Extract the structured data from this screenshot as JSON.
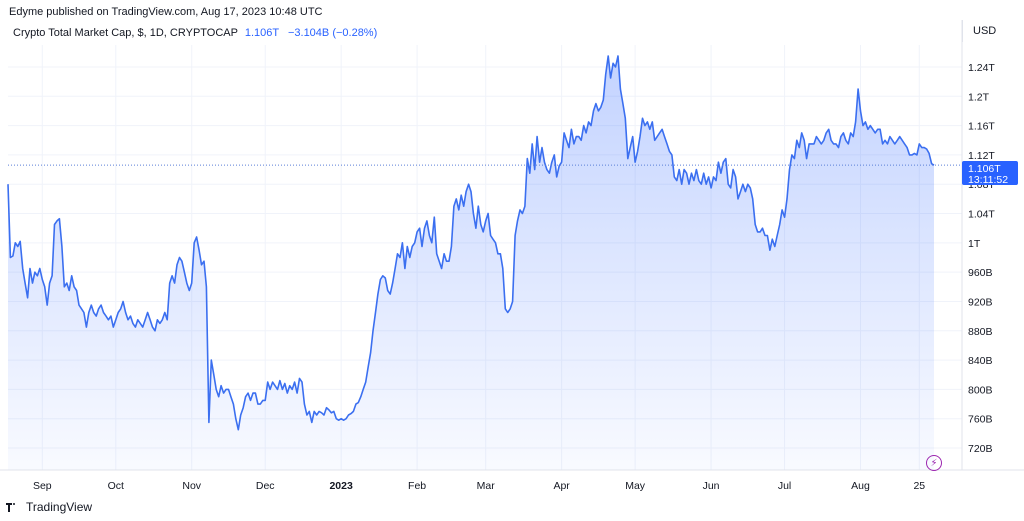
{
  "header": {
    "published": "Edyme published on TradingView.com, Aug 17, 2023 10:48 UTC",
    "symbol_label": "Crypto Total Market Cap, $, 1D, CRYPTOCAP",
    "last_value": "1.106T",
    "change": "−3.104B (−0.28%)",
    "currency": "USD"
  },
  "price_tag": {
    "value": "1.106T",
    "countdown": "13:11:52"
  },
  "brand": {
    "name": "TradingView",
    "icon": "tradingview-logo"
  },
  "colors": {
    "line": "#3b6ff0",
    "fill": "#2962ff",
    "tag": "#2962ff",
    "grid": "#f0f3fa"
  },
  "chart_data": {
    "type": "area",
    "y_unit": "USD",
    "ylim": [
      690,
      1270
    ],
    "y_ticks": [
      720,
      760,
      800,
      840,
      880,
      920,
      960,
      1000,
      1040,
      1080,
      1120,
      1160,
      1200,
      1240
    ],
    "y_tick_labels": [
      "720B",
      "760B",
      "800B",
      "840B",
      "880B",
      "920B",
      "960B",
      "1T",
      "1.04T",
      "1.08T",
      "1.12T",
      "1.16T",
      "1.2T",
      "1.24T"
    ],
    "x_labels": [
      {
        "label": "Sep",
        "day": 14,
        "bold": false
      },
      {
        "label": "Oct",
        "day": 44,
        "bold": false
      },
      {
        "label": "Nov",
        "day": 75,
        "bold": false
      },
      {
        "label": "Dec",
        "day": 105,
        "bold": false
      },
      {
        "label": "2023",
        "day": 136,
        "bold": true
      },
      {
        "label": "Feb",
        "day": 167,
        "bold": false
      },
      {
        "label": "Mar",
        "day": 195,
        "bold": false
      },
      {
        "label": "Apr",
        "day": 226,
        "bold": false
      },
      {
        "label": "May",
        "day": 256,
        "bold": false
      },
      {
        "label": "Jun",
        "day": 287,
        "bold": false
      },
      {
        "label": "Jul",
        "day": 317,
        "bold": false
      },
      {
        "label": "Aug",
        "day": 348,
        "bold": false
      },
      {
        "label": "25",
        "day": 372,
        "bold": false
      }
    ],
    "x_domain": [
      0,
      378
    ],
    "last_value": 1106,
    "points": [
      [
        0,
        1080
      ],
      [
        1,
        980
      ],
      [
        2,
        982
      ],
      [
        3,
        1000
      ],
      [
        4,
        995
      ],
      [
        5,
        1002
      ],
      [
        6,
        965
      ],
      [
        7,
        945
      ],
      [
        8,
        925
      ],
      [
        9,
        965
      ],
      [
        10,
        945
      ],
      [
        11,
        960
      ],
      [
        12,
        955
      ],
      [
        13,
        965
      ],
      [
        14,
        950
      ],
      [
        15,
        940
      ],
      [
        16,
        915
      ],
      [
        17,
        945
      ],
      [
        18,
        955
      ],
      [
        19,
        1025
      ],
      [
        20,
        1030
      ],
      [
        21,
        1033
      ],
      [
        22,
        995
      ],
      [
        23,
        940
      ],
      [
        24,
        945
      ],
      [
        25,
        935
      ],
      [
        26,
        955
      ],
      [
        27,
        940
      ],
      [
        28,
        935
      ],
      [
        29,
        915
      ],
      [
        30,
        910
      ],
      [
        31,
        905
      ],
      [
        32,
        885
      ],
      [
        33,
        905
      ],
      [
        34,
        915
      ],
      [
        35,
        905
      ],
      [
        36,
        900
      ],
      [
        37,
        910
      ],
      [
        38,
        915
      ],
      [
        39,
        905
      ],
      [
        40,
        900
      ],
      [
        41,
        895
      ],
      [
        42,
        900
      ],
      [
        43,
        885
      ],
      [
        44,
        895
      ],
      [
        45,
        905
      ],
      [
        46,
        910
      ],
      [
        47,
        920
      ],
      [
        48,
        905
      ],
      [
        49,
        895
      ],
      [
        50,
        900
      ],
      [
        51,
        890
      ],
      [
        52,
        885
      ],
      [
        53,
        895
      ],
      [
        54,
        890
      ],
      [
        55,
        885
      ],
      [
        56,
        895
      ],
      [
        57,
        905
      ],
      [
        58,
        895
      ],
      [
        59,
        885
      ],
      [
        60,
        880
      ],
      [
        61,
        895
      ],
      [
        62,
        890
      ],
      [
        63,
        895
      ],
      [
        64,
        905
      ],
      [
        65,
        895
      ],
      [
        66,
        945
      ],
      [
        67,
        955
      ],
      [
        68,
        945
      ],
      [
        69,
        970
      ],
      [
        70,
        980
      ],
      [
        71,
        975
      ],
      [
        72,
        960
      ],
      [
        73,
        945
      ],
      [
        74,
        935
      ],
      [
        75,
        945
      ],
      [
        76,
        1000
      ],
      [
        77,
        1008
      ],
      [
        78,
        990
      ],
      [
        79,
        970
      ],
      [
        80,
        975
      ],
      [
        81,
        940
      ],
      [
        82,
        755
      ],
      [
        83,
        840
      ],
      [
        84,
        820
      ],
      [
        85,
        800
      ],
      [
        86,
        790
      ],
      [
        87,
        805
      ],
      [
        88,
        795
      ],
      [
        89,
        800
      ],
      [
        90,
        800
      ],
      [
        91,
        790
      ],
      [
        92,
        780
      ],
      [
        93,
        760
      ],
      [
        94,
        745
      ],
      [
        95,
        765
      ],
      [
        96,
        775
      ],
      [
        97,
        790
      ],
      [
        98,
        795
      ],
      [
        99,
        785
      ],
      [
        100,
        795
      ],
      [
        101,
        795
      ],
      [
        102,
        780
      ],
      [
        103,
        780
      ],
      [
        104,
        785
      ],
      [
        105,
        785
      ],
      [
        106,
        810
      ],
      [
        107,
        800
      ],
      [
        108,
        810
      ],
      [
        109,
        805
      ],
      [
        110,
        800
      ],
      [
        111,
        812
      ],
      [
        112,
        800
      ],
      [
        113,
        808
      ],
      [
        114,
        795
      ],
      [
        115,
        805
      ],
      [
        116,
        800
      ],
      [
        117,
        810
      ],
      [
        118,
        795
      ],
      [
        119,
        815
      ],
      [
        120,
        810
      ],
      [
        121,
        780
      ],
      [
        122,
        765
      ],
      [
        123,
        770
      ],
      [
        124,
        755
      ],
      [
        125,
        770
      ],
      [
        126,
        765
      ],
      [
        127,
        770
      ],
      [
        128,
        768
      ],
      [
        129,
        765
      ],
      [
        130,
        775
      ],
      [
        131,
        772
      ],
      [
        132,
        768
      ],
      [
        133,
        770
      ],
      [
        134,
        760
      ],
      [
        135,
        758
      ],
      [
        136,
        760
      ],
      [
        137,
        758
      ],
      [
        138,
        760
      ],
      [
        139,
        765
      ],
      [
        140,
        767
      ],
      [
        141,
        770
      ],
      [
        142,
        780
      ],
      [
        143,
        782
      ],
      [
        144,
        790
      ],
      [
        145,
        800
      ],
      [
        146,
        810
      ],
      [
        147,
        830
      ],
      [
        148,
        850
      ],
      [
        149,
        880
      ],
      [
        150,
        905
      ],
      [
        151,
        930
      ],
      [
        152,
        950
      ],
      [
        153,
        955
      ],
      [
        154,
        952
      ],
      [
        155,
        935
      ],
      [
        156,
        930
      ],
      [
        157,
        945
      ],
      [
        158,
        965
      ],
      [
        159,
        985
      ],
      [
        160,
        980
      ],
      [
        161,
        1000
      ],
      [
        162,
        965
      ],
      [
        163,
        995
      ],
      [
        164,
        980
      ],
      [
        165,
        995
      ],
      [
        166,
        1000
      ],
      [
        167,
        1015
      ],
      [
        168,
        1020
      ],
      [
        169,
        995
      ],
      [
        170,
        1020
      ],
      [
        171,
        1030
      ],
      [
        172,
        1010
      ],
      [
        173,
        1000
      ],
      [
        174,
        1035
      ],
      [
        175,
        985
      ],
      [
        176,
        975
      ],
      [
        177,
        965
      ],
      [
        178,
        985
      ],
      [
        179,
        975
      ],
      [
        180,
        975
      ],
      [
        181,
        995
      ],
      [
        182,
        1050
      ],
      [
        183,
        1060
      ],
      [
        184,
        1045
      ],
      [
        185,
        1065
      ],
      [
        186,
        1050
      ],
      [
        187,
        1070
      ],
      [
        188,
        1080
      ],
      [
        189,
        1070
      ],
      [
        190,
        1040
      ],
      [
        191,
        1020
      ],
      [
        192,
        1050
      ],
      [
        193,
        1025
      ],
      [
        194,
        1015
      ],
      [
        195,
        1030
      ],
      [
        196,
        1040
      ],
      [
        197,
        1010
      ],
      [
        198,
        1005
      ],
      [
        199,
        1000
      ],
      [
        200,
        985
      ],
      [
        201,
        985
      ],
      [
        202,
        965
      ],
      [
        203,
        910
      ],
      [
        204,
        905
      ],
      [
        205,
        910
      ],
      [
        206,
        920
      ],
      [
        207,
        1010
      ],
      [
        208,
        1030
      ],
      [
        209,
        1045
      ],
      [
        210,
        1040
      ],
      [
        211,
        1050
      ],
      [
        212,
        1115
      ],
      [
        213,
        1095
      ],
      [
        214,
        1135
      ],
      [
        215,
        1100
      ],
      [
        216,
        1145
      ],
      [
        217,
        1110
      ],
      [
        218,
        1130
      ],
      [
        219,
        1110
      ],
      [
        220,
        1100
      ],
      [
        221,
        1095
      ],
      [
        222,
        1110
      ],
      [
        223,
        1120
      ],
      [
        224,
        1090
      ],
      [
        225,
        1105
      ],
      [
        226,
        1110
      ],
      [
        227,
        1150
      ],
      [
        228,
        1140
      ],
      [
        229,
        1130
      ],
      [
        230,
        1155
      ],
      [
        231,
        1135
      ],
      [
        232,
        1145
      ],
      [
        233,
        1145
      ],
      [
        234,
        1140
      ],
      [
        235,
        1160
      ],
      [
        236,
        1150
      ],
      [
        237,
        1165
      ],
      [
        238,
        1160
      ],
      [
        239,
        1180
      ],
      [
        240,
        1190
      ],
      [
        241,
        1180
      ],
      [
        242,
        1185
      ],
      [
        243,
        1195
      ],
      [
        244,
        1230
      ],
      [
        245,
        1255
      ],
      [
        246,
        1225
      ],
      [
        247,
        1245
      ],
      [
        248,
        1240
      ],
      [
        249,
        1255
      ],
      [
        250,
        1210
      ],
      [
        251,
        1190
      ],
      [
        252,
        1170
      ],
      [
        253,
        1115
      ],
      [
        254,
        1130
      ],
      [
        255,
        1145
      ],
      [
        256,
        1110
      ],
      [
        257,
        1125
      ],
      [
        258,
        1145
      ],
      [
        259,
        1170
      ],
      [
        260,
        1160
      ],
      [
        261,
        1165
      ],
      [
        262,
        1155
      ],
      [
        263,
        1165
      ],
      [
        264,
        1140
      ],
      [
        265,
        1145
      ],
      [
        266,
        1150
      ],
      [
        267,
        1155
      ],
      [
        268,
        1145
      ],
      [
        269,
        1135
      ],
      [
        270,
        1125
      ],
      [
        271,
        1120
      ],
      [
        272,
        1090
      ],
      [
        273,
        1085
      ],
      [
        274,
        1100
      ],
      [
        275,
        1080
      ],
      [
        276,
        1100
      ],
      [
        277,
        1095
      ],
      [
        278,
        1080
      ],
      [
        279,
        1095
      ],
      [
        280,
        1085
      ],
      [
        281,
        1100
      ],
      [
        282,
        1085
      ],
      [
        283,
        1080
      ],
      [
        284,
        1095
      ],
      [
        285,
        1080
      ],
      [
        286,
        1090
      ],
      [
        287,
        1075
      ],
      [
        288,
        1090
      ],
      [
        289,
        1085
      ],
      [
        290,
        1110
      ],
      [
        291,
        1095
      ],
      [
        292,
        1110
      ],
      [
        293,
        1115
      ],
      [
        294,
        1080
      ],
      [
        295,
        1075
      ],
      [
        296,
        1100
      ],
      [
        297,
        1090
      ],
      [
        298,
        1060
      ],
      [
        299,
        1070
      ],
      [
        300,
        1080
      ],
      [
        301,
        1070
      ],
      [
        302,
        1080
      ],
      [
        303,
        1075
      ],
      [
        304,
        1060
      ],
      [
        305,
        1025
      ],
      [
        306,
        1015
      ],
      [
        307,
        1015
      ],
      [
        308,
        1020
      ],
      [
        309,
        1010
      ],
      [
        310,
        1010
      ],
      [
        311,
        990
      ],
      [
        312,
        1005
      ],
      [
        313,
        995
      ],
      [
        314,
        1010
      ],
      [
        315,
        1025
      ],
      [
        316,
        1045
      ],
      [
        317,
        1035
      ],
      [
        318,
        1060
      ],
      [
        319,
        1100
      ],
      [
        320,
        1120
      ],
      [
        321,
        1115
      ],
      [
        322,
        1140
      ],
      [
        323,
        1130
      ],
      [
        324,
        1150
      ],
      [
        325,
        1140
      ],
      [
        326,
        1115
      ],
      [
        327,
        1135
      ],
      [
        328,
        1135
      ],
      [
        329,
        1135
      ],
      [
        330,
        1145
      ],
      [
        331,
        1140
      ],
      [
        332,
        1135
      ],
      [
        333,
        1140
      ],
      [
        334,
        1150
      ],
      [
        335,
        1155
      ],
      [
        336,
        1140
      ],
      [
        337,
        1135
      ],
      [
        338,
        1135
      ],
      [
        339,
        1130
      ],
      [
        340,
        1145
      ],
      [
        341,
        1150
      ],
      [
        342,
        1140
      ],
      [
        343,
        1135
      ],
      [
        344,
        1150
      ],
      [
        345,
        1145
      ],
      [
        346,
        1165
      ],
      [
        347,
        1210
      ],
      [
        348,
        1180
      ],
      [
        349,
        1160
      ],
      [
        350,
        1165
      ],
      [
        351,
        1155
      ],
      [
        352,
        1160
      ],
      [
        353,
        1155
      ],
      [
        354,
        1150
      ],
      [
        355,
        1155
      ],
      [
        356,
        1155
      ],
      [
        357,
        1135
      ],
      [
        358,
        1140
      ],
      [
        359,
        1135
      ],
      [
        360,
        1145
      ],
      [
        361,
        1140
      ],
      [
        362,
        1135
      ],
      [
        363,
        1140
      ],
      [
        364,
        1145
      ],
      [
        365,
        1140
      ],
      [
        366,
        1135
      ],
      [
        367,
        1130
      ],
      [
        368,
        1120
      ],
      [
        369,
        1120
      ],
      [
        370,
        1122
      ],
      [
        371,
        1120
      ],
      [
        372,
        1135
      ],
      [
        373,
        1130
      ],
      [
        374,
        1130
      ],
      [
        375,
        1128
      ],
      [
        376,
        1122
      ],
      [
        377,
        1108
      ],
      [
        378,
        1106
      ]
    ]
  }
}
